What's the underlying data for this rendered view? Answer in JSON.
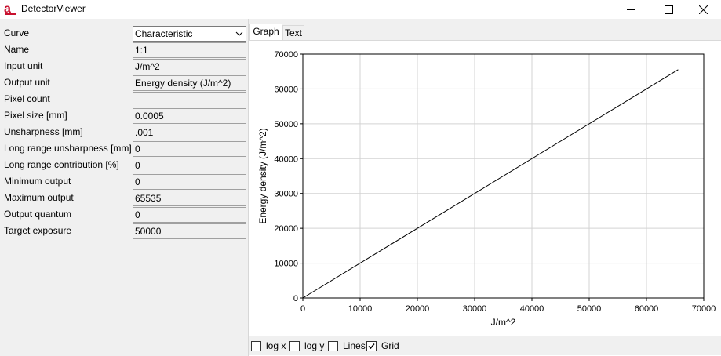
{
  "window": {
    "title": "DetectorViewer",
    "app_icon": "red-a-app-icon",
    "controls": [
      "minimize-icon",
      "maximize-icon",
      "close-icon"
    ]
  },
  "properties": [
    {
      "label": "Curve",
      "value": "Characteristic",
      "kind": "combo"
    },
    {
      "label": "Name",
      "value": "1:1",
      "kind": "text"
    },
    {
      "label": "Input unit",
      "value": "J/m^2",
      "kind": "text"
    },
    {
      "label": "Output unit",
      "value": "Energy density (J/m^2)",
      "kind": "text"
    },
    {
      "label": "Pixel count",
      "value": "",
      "kind": "text"
    },
    {
      "label": "Pixel size [mm]",
      "value": "0.0005",
      "kind": "text"
    },
    {
      "label": "Unsharpness [mm]",
      "value": ".001",
      "kind": "text"
    },
    {
      "label": "Long range unsharpness [mm]",
      "value": "0",
      "kind": "text"
    },
    {
      "label": "Long range contribution [%]",
      "value": "0",
      "kind": "text"
    },
    {
      "label": "Minimum output",
      "value": "0",
      "kind": "text"
    },
    {
      "label": "Maximum output",
      "value": "65535",
      "kind": "text"
    },
    {
      "label": "Output quantum",
      "value": "0",
      "kind": "text"
    },
    {
      "label": "Target exposure",
      "value": "50000",
      "kind": "text"
    }
  ],
  "tabs": [
    {
      "label": "Graph",
      "active": true
    },
    {
      "label": "Text",
      "active": false
    }
  ],
  "options": [
    {
      "label": "log x",
      "checked": false
    },
    {
      "label": "log y",
      "checked": false
    },
    {
      "label": "Lines",
      "checked": false
    },
    {
      "label": "Grid",
      "checked": true
    }
  ],
  "chart_data": {
    "type": "line",
    "xlabel": "J/m^2",
    "ylabel": "Energy density (J/m^2)",
    "xlim": [
      0,
      70000
    ],
    "ylim": [
      0,
      70000
    ],
    "xticks": [
      0,
      10000,
      20000,
      30000,
      40000,
      50000,
      60000,
      70000
    ],
    "yticks": [
      0,
      10000,
      20000,
      30000,
      40000,
      50000,
      60000,
      70000
    ],
    "grid": true,
    "series": [
      {
        "x": [
          0,
          65535
        ],
        "y": [
          0,
          65535
        ]
      }
    ],
    "colors": {
      "line": "#000000",
      "grid": "#d3d3d3",
      "axis": "#000000"
    }
  }
}
